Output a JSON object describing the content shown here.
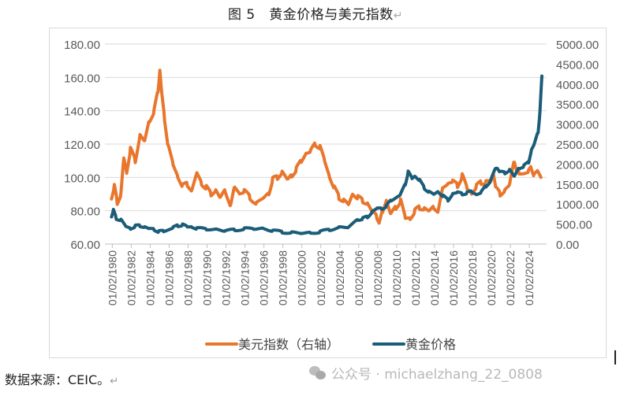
{
  "title": "图 5　黄金价格与美元指数",
  "title_return_mark": "↵",
  "source": {
    "text": "数据来源：CEIC。",
    "return_mark": "↵"
  },
  "watermark": {
    "icon": "wechat-icon",
    "text": "公众号 · michaelzhang_22_0808"
  },
  "colors": {
    "usd_index": "#E8762C",
    "gold": "#1B5C78",
    "grid": "#d9d9d9",
    "axis_text": "#595959"
  },
  "chart_data": {
    "type": "line",
    "title": "黄金价格与美元指数",
    "xlabel": "",
    "ylabel_left": "",
    "ylabel_right": "",
    "left_axis": {
      "ticks": [
        "180.00",
        "160.00",
        "140.00",
        "120.00",
        "100.00",
        "80.00",
        "60.00"
      ],
      "range": [
        60,
        180
      ]
    },
    "right_axis": {
      "ticks": [
        "5000.00",
        "4500.00",
        "4000.00",
        "3500.00",
        "3000.00",
        "2500.00",
        "2000.00",
        "1500.00",
        "1000.00",
        "500.00",
        "0.00"
      ],
      "range": [
        0,
        5000
      ]
    },
    "x_tick_labels": [
      "01/02/1980",
      "01/02/1982",
      "01/02/1984",
      "01/02/1986",
      "01/02/1988",
      "01/02/1990",
      "01/02/1992",
      "01/02/1994",
      "01/02/1996",
      "01/02/1998",
      "01/02/2000",
      "01/02/2002",
      "01/02/2004",
      "01/02/2006",
      "01/02/2008",
      "01/02/2010",
      "01/02/2012",
      "01/02/2014",
      "01/02/2016",
      "01/02/2018",
      "01/02/2020",
      "01/02/2022",
      "01/02/2024"
    ],
    "grid": true,
    "legend_position": "bottom",
    "series": [
      {
        "name": "美元指数（右轴）",
        "axis": "left",
        "x": [
          1980.0,
          1980.3,
          1980.6,
          1981.0,
          1981.3,
          1981.6,
          1982.0,
          1982.5,
          1983.0,
          1983.5,
          1984.0,
          1984.5,
          1984.9,
          1985.1,
          1985.3,
          1985.6,
          1986.0,
          1986.5,
          1987.0,
          1987.5,
          1988.0,
          1988.5,
          1989.0,
          1989.5,
          1990.0,
          1990.5,
          1991.0,
          1991.5,
          1992.0,
          1992.6,
          1993.0,
          1993.5,
          1994.0,
          1994.6,
          1995.3,
          1996.0,
          1996.6,
          1997.0,
          1997.5,
          1998.0,
          1998.6,
          1999.0,
          1999.5,
          2000.0,
          2000.5,
          2001.0,
          2001.5,
          2002.0,
          2002.5,
          2003.0,
          2003.5,
          2004.0,
          2004.5,
          2005.0,
          2005.5,
          2006.0,
          2006.5,
          2007.0,
          2007.5,
          2008.0,
          2008.3,
          2008.6,
          2009.0,
          2009.5,
          2010.0,
          2010.5,
          2011.0,
          2011.5,
          2012.0,
          2012.5,
          2013.0,
          2013.5,
          2014.0,
          2014.5,
          2015.0,
          2015.5,
          2016.0,
          2016.5,
          2017.0,
          2017.5,
          2018.0,
          2018.5,
          2019.0,
          2019.5,
          2020.0,
          2020.3,
          2020.6,
          2021.0,
          2021.5,
          2022.0,
          2022.5,
          2022.8,
          2023.0,
          2023.5,
          2024.0,
          2024.3,
          2024.6,
          2025.0,
          2025.3
        ],
        "values": [
          87,
          95,
          85,
          90,
          112,
          103,
          117,
          110,
          125,
          122,
          134,
          140,
          152,
          164,
          150,
          135,
          118,
          108,
          100,
          95,
          96,
          92,
          103,
          96,
          94,
          90,
          92,
          88,
          92,
          83,
          95,
          90,
          92,
          88,
          84,
          88,
          90,
          99,
          100,
          103,
          99,
          101,
          105,
          110,
          114,
          116,
          120,
          118,
          110,
          100,
          94,
          88,
          86,
          84,
          90,
          88,
          86,
          84,
          80,
          76,
          73,
          80,
          86,
          78,
          82,
          86,
          76,
          75,
          80,
          82,
          81,
          80,
          82,
          80,
          95,
          96,
          98,
          95,
          101,
          94,
          90,
          95,
          97,
          97,
          98,
          102,
          93,
          90,
          92,
          96,
          110,
          104,
          103,
          102,
          104,
          106,
          101,
          104,
          100
        ],
        "unit": "index"
      },
      {
        "name": "黄金价格",
        "axis": "right",
        "x": [
          1980.0,
          1980.2,
          1980.5,
          1981.0,
          1981.5,
          1982.0,
          1982.5,
          1983.0,
          1983.5,
          1984.0,
          1984.5,
          1985.0,
          1985.5,
          1986.0,
          1986.5,
          1987.0,
          1987.5,
          1988.0,
          1988.5,
          1989.0,
          1990.0,
          1991.0,
          1992.0,
          1993.0,
          1994.0,
          1995.0,
          1996.0,
          1997.0,
          1998.0,
          1999.0,
          2000.0,
          2001.0,
          2002.0,
          2003.0,
          2004.0,
          2005.0,
          2006.0,
          2006.5,
          2007.0,
          2007.5,
          2008.0,
          2008.5,
          2009.0,
          2009.5,
          2010.0,
          2010.5,
          2011.0,
          2011.3,
          2011.7,
          2012.0,
          2012.5,
          2013.0,
          2013.5,
          2014.0,
          2014.5,
          2015.0,
          2015.5,
          2016.0,
          2016.5,
          2017.0,
          2017.5,
          2018.0,
          2018.5,
          2019.0,
          2019.5,
          2020.0,
          2020.5,
          2020.7,
          2021.0,
          2021.5,
          2022.0,
          2022.5,
          2023.0,
          2023.5,
          2024.0,
          2024.3,
          2024.6,
          2025.0,
          2025.2,
          2025.4
        ],
        "values": [
          680,
          850,
          640,
          600,
          450,
          380,
          450,
          460,
          420,
          390,
          360,
          310,
          330,
          350,
          420,
          460,
          480,
          440,
          420,
          390,
          380,
          360,
          340,
          350,
          380,
          390,
          380,
          340,
          300,
          280,
          280,
          270,
          310,
          360,
          410,
          430,
          600,
          640,
          680,
          800,
          900,
          880,
          950,
          1100,
          1150,
          1250,
          1500,
          1800,
          1650,
          1700,
          1600,
          1400,
          1300,
          1250,
          1300,
          1200,
          1100,
          1250,
          1300,
          1250,
          1280,
          1320,
          1230,
          1300,
          1450,
          1580,
          1900,
          1900,
          1800,
          1780,
          1850,
          1700,
          1900,
          1950,
          2050,
          2350,
          2500,
          2800,
          3300,
          4200
        ],
        "unit": "USD/oz"
      }
    ]
  }
}
